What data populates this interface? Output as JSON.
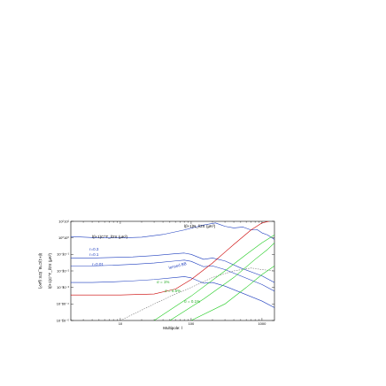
{
  "chart_data": {
    "type": "line",
    "xlabel": "Multipole: l",
    "ylabel": "l(l+1)C^T_l/2π (μK²)",
    "xscale": "log",
    "yscale": "log",
    "xlim": [
      2,
      1500
    ],
    "ylim": [
      1e-05,
      10
    ],
    "x_ticks": [
      {
        "value": 10,
        "label": "10"
      },
      {
        "value": 100,
        "label": "100"
      },
      {
        "value": 1000,
        "label": "1000"
      }
    ],
    "y_ticks": [
      {
        "value": 10,
        "label": "10¹"
      },
      {
        "value": 1,
        "label": "10⁰"
      },
      {
        "value": 0.1,
        "label": "10⁻¹"
      },
      {
        "value": 0.01,
        "label": "10⁻²"
      },
      {
        "value": 0.001,
        "label": "10⁻³"
      },
      {
        "value": 0.0001,
        "label": "10⁻⁴"
      },
      {
        "value": 1e-05,
        "label": "10⁻⁵"
      }
    ],
    "y_axis_secondary_label": "l(l+1)C^B_l/2π (μK²)",
    "grid": false,
    "annotations": {
      "tt_label": "l(l+1)C^T_l/2π (μK²)",
      "noise_label": "l(l+1)N_l/2π (μK²)",
      "lensed_bb": "lensed BB",
      "r_labels": [
        "r=0.3",
        "r=0.1",
        "r=0.01"
      ],
      "noise_levels": [
        "σ = 1%",
        "σ = 0.5%",
        "σ = 0.1%"
      ]
    },
    "series": [
      {
        "name": "r=0.3",
        "color": "#1f3fbf",
        "points": [
          [
            2,
            0.06
          ],
          [
            4,
            0.06
          ],
          [
            8,
            0.065
          ],
          [
            15,
            0.07
          ],
          [
            30,
            0.085
          ],
          [
            60,
            0.11
          ],
          [
            80,
            0.12
          ],
          [
            100,
            0.1
          ],
          [
            150,
            0.05
          ],
          [
            200,
            0.06
          ],
          [
            300,
            0.04
          ],
          [
            500,
            0.015
          ],
          [
            1000,
            0.005
          ],
          [
            1500,
            0.002
          ]
        ]
      },
      {
        "name": "r=0.1",
        "color": "#1f3fbf",
        "points": [
          [
            2,
            0.02
          ],
          [
            4,
            0.02
          ],
          [
            8,
            0.022
          ],
          [
            15,
            0.025
          ],
          [
            30,
            0.03
          ],
          [
            60,
            0.04
          ],
          [
            80,
            0.045
          ],
          [
            100,
            0.038
          ],
          [
            150,
            0.018
          ],
          [
            200,
            0.02
          ],
          [
            300,
            0.012
          ],
          [
            500,
            0.005
          ],
          [
            1000,
            0.0015
          ],
          [
            1500,
            0.0006
          ]
        ]
      },
      {
        "name": "r=0.01",
        "color": "#1f3fbf",
        "points": [
          [
            2,
            0.002
          ],
          [
            4,
            0.002
          ],
          [
            8,
            0.0022
          ],
          [
            15,
            0.0025
          ],
          [
            30,
            0.003
          ],
          [
            60,
            0.004
          ],
          [
            80,
            0.0045
          ],
          [
            100,
            0.0038
          ],
          [
            150,
            0.0018
          ],
          [
            200,
            0.002
          ],
          [
            300,
            0.0012
          ],
          [
            500,
            0.0005
          ],
          [
            1000,
            0.00015
          ],
          [
            1500,
            6e-05
          ]
        ]
      },
      {
        "name": "TT",
        "color": "#1f3fbf",
        "points": [
          [
            2,
            1.2
          ],
          [
            5,
            1.0
          ],
          [
            10,
            1.0
          ],
          [
            20,
            1.1
          ],
          [
            40,
            1.6
          ],
          [
            80,
            3.0
          ],
          [
            150,
            6.0
          ],
          [
            220,
            8.0
          ],
          [
            300,
            5.0
          ],
          [
            400,
            4.0
          ],
          [
            540,
            4.5
          ],
          [
            700,
            3.0
          ],
          [
            850,
            3.2
          ],
          [
            1000,
            2.0
          ],
          [
            1200,
            1.5
          ],
          [
            1500,
            0.8
          ]
        ]
      },
      {
        "name": "noise",
        "color": "#cc0000",
        "points": [
          [
            2,
            0.00035
          ],
          [
            10,
            0.00035
          ],
          [
            30,
            0.0004
          ],
          [
            60,
            0.0008
          ],
          [
            100,
            0.003
          ],
          [
            200,
            0.03
          ],
          [
            400,
            0.4
          ],
          [
            700,
            3.0
          ],
          [
            1000,
            8.0
          ],
          [
            1500,
            12.0
          ]
        ]
      },
      {
        "name": "lensed BB",
        "color": "#7a7a7a",
        "dashed": true,
        "points": [
          [
            2,
            8e-07
          ],
          [
            10,
            1e-05
          ],
          [
            30,
            0.0001
          ],
          [
            60,
            0.0004
          ],
          [
            100,
            0.001
          ],
          [
            200,
            0.004
          ],
          [
            400,
            0.01
          ],
          [
            700,
            0.015
          ],
          [
            1000,
            0.012
          ],
          [
            1500,
            0.01
          ]
        ]
      },
      {
        "name": "σ = 1%",
        "color": "#22cc22",
        "points": [
          [
            30,
            1e-05
          ],
          [
            100,
            0.0003
          ],
          [
            300,
            0.01
          ],
          [
            600,
            0.1
          ],
          [
            1000,
            0.5
          ],
          [
            1500,
            1.5
          ]
        ]
      },
      {
        "name": "σ = 0.5%",
        "color": "#22cc22",
        "points": [
          [
            50,
            1e-05
          ],
          [
            150,
            0.0002
          ],
          [
            400,
            0.004
          ],
          [
            800,
            0.05
          ],
          [
            1200,
            0.2
          ],
          [
            1500,
            0.5
          ]
        ]
      },
      {
        "name": "σ = 0.1%",
        "color": "#22cc22",
        "points": [
          [
            100,
            1e-05
          ],
          [
            300,
            0.0001
          ],
          [
            600,
            0.001
          ],
          [
            1000,
            0.006
          ],
          [
            1500,
            0.02
          ]
        ]
      }
    ]
  }
}
